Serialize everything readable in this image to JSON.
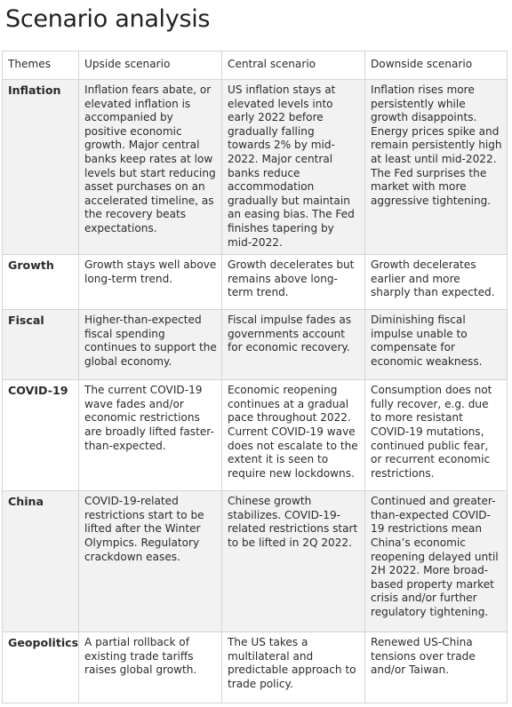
{
  "title": "Scenario analysis",
  "headers": [
    "Themes",
    "Upside scenario",
    "Central scenario",
    "Downside scenario"
  ],
  "rows": [
    {
      "theme": "Inflation",
      "upside": "Inflation fears abate, or elevated inflation is accompanied by positive economic growth. Major central banks keep rates at low levels but start reducing asset purchases on an accelerated timeline, as the recovery beats expectations.",
      "central": "US inflation stays at elevated levels into early 2022 before gradually falling towards 2% by mid-2022. Major central banks reduce accommodation gradually but maintain an easing bias. The Fed finishes tapering by mid-2022.",
      "downside": "Inflation rises more persistently while growth disappoints. Energy prices spike and remain persistently high at least until mid-2022. The Fed surprises the market with more aggressive tightening."
    },
    {
      "theme": "Growth",
      "upside": "Growth stays well above long-term trend.",
      "central": "Growth decelerates but remains above long-term trend.",
      "downside": "Growth decelerates earlier and more sharply than expected."
    },
    {
      "theme": "Fiscal",
      "upside": "Higher-than-expected fiscal spending continues to support the global economy.",
      "central": "Fiscal impulse fades as governments account for economic recovery.",
      "downside": "Diminishing fiscal impulse unable to compensate for economic weakness."
    },
    {
      "theme": "COVID-19",
      "upside": "The current COVID-19 wave fades and/or economic restrictions are broadly lifted faster-than-expected.",
      "central": "Economic reopening continues at a gradual pace throughout 2022. Current COVID-19 wave does not escalate to the extent it is seen to require new lockdowns.",
      "downside": "Consumption does not fully recover, e.g. due to more resistant COVID-19 mutations, continued public fear, or recurrent economic restrictions."
    },
    {
      "theme": "China",
      "upside": "COVID-19-related restrictions start to be lifted after the Winter Olympics.  Regulatory crackdown eases.",
      "central": "Chinese growth stabilizes. COVID-19-related restrictions start to be lifted in 2Q 2022.",
      "downside": "Continued and greater-than-expected COVID-19 restrictions mean China’s economic reopening delayed until 2H 2022. More broad-based property market crisis and/or further regulatory tightening."
    },
    {
      "theme": "Geopolitics",
      "upside": "A partial rollback of existing trade tariffs raises global growth.",
      "central": "The US takes a multilateral and predictable approach to trade policy.",
      "downside": "Renewed US-China tensions over trade and/or Taiwan."
    }
  ]
}
